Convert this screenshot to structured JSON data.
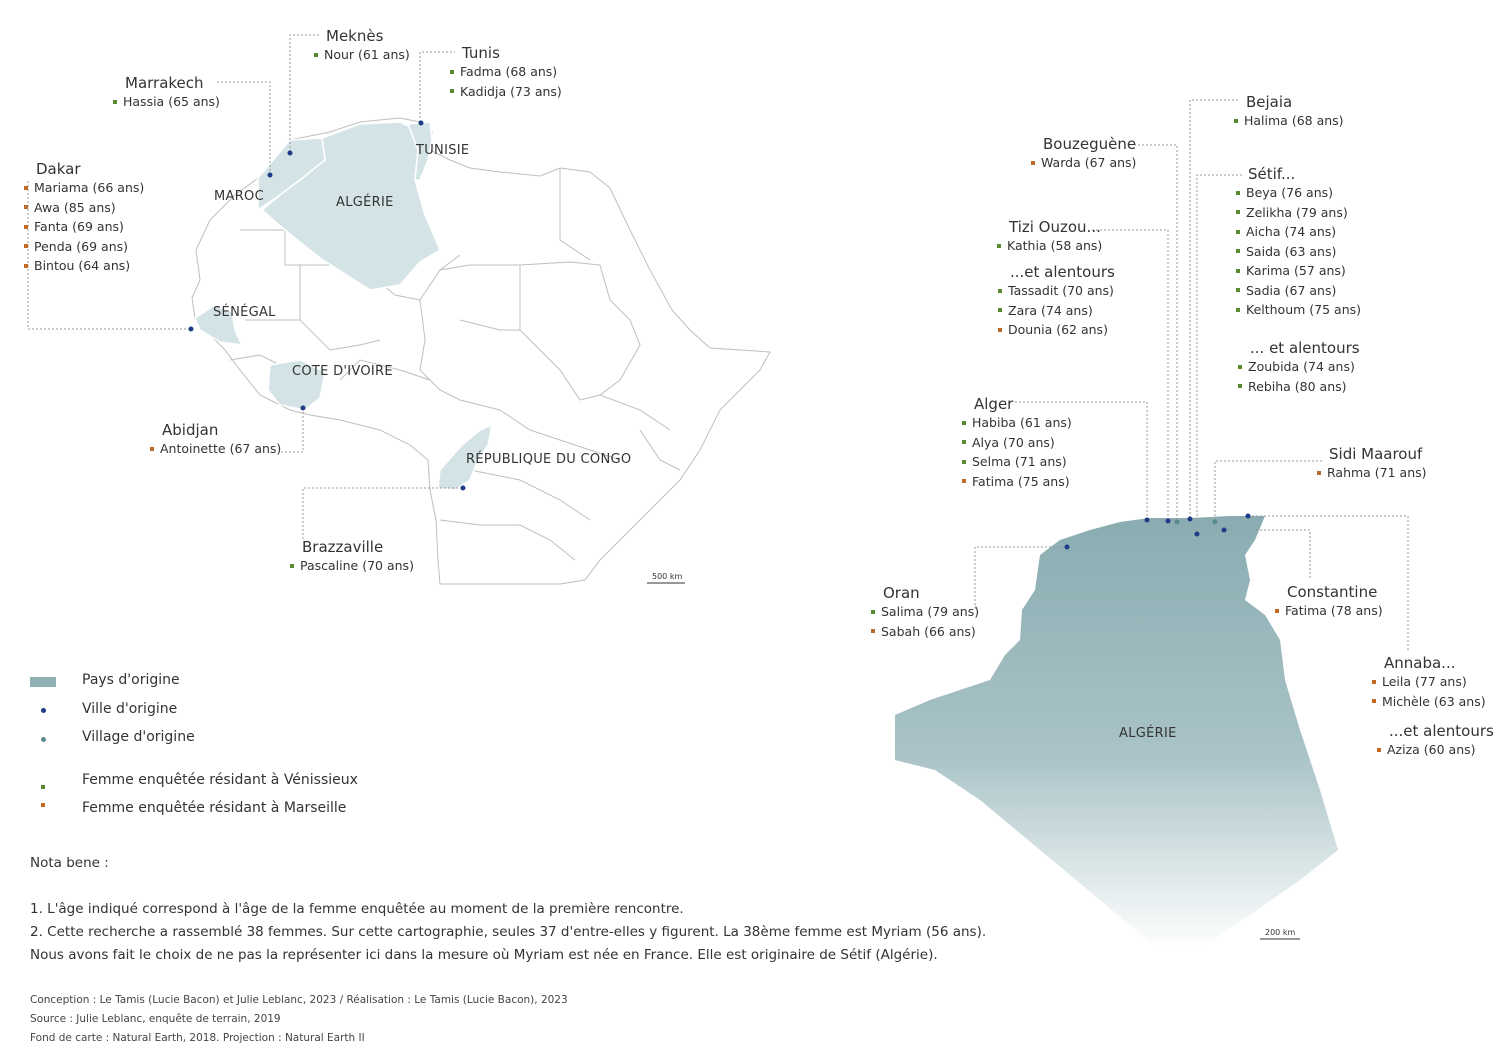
{
  "colors": {
    "vienissieux": "#5a8a2e",
    "marseille": "#c06a2a",
    "origin_fill": "#d3e3e6",
    "algeria_fill": "#8fb0b5",
    "city_dot": "#1f3c88",
    "village_dot": "#5b8a8e"
  },
  "countries": {
    "maroc": "MAROC",
    "algerie": "ALGÉRIE",
    "tunisie": "TUNISIE",
    "senegal": "SÉNÉGAL",
    "cote": "COTE D'IVOIRE",
    "congo": "RÉPUBLIQUE DU CONGO",
    "algerie_detail": "ALGÉRIE"
  },
  "cities": {
    "meknes": {
      "city": "Meknès",
      "women": [
        {
          "name": "Nour (61 ans)",
          "res": "v"
        }
      ]
    },
    "tunis": {
      "city": "Tunis",
      "women": [
        {
          "name": "Fadma (68 ans)",
          "res": "v"
        },
        {
          "name": "Kadidja (73 ans)",
          "res": "v"
        }
      ]
    },
    "marrakech": {
      "city": "Marrakech",
      "women": [
        {
          "name": "Hassia (65 ans)",
          "res": "v"
        }
      ]
    },
    "dakar": {
      "city": "Dakar",
      "women": [
        {
          "name": "Mariama (66 ans)",
          "res": "m"
        },
        {
          "name": "Awa (85 ans)",
          "res": "m"
        },
        {
          "name": "Fanta (69 ans)",
          "res": "m"
        },
        {
          "name": "Penda (69 ans)",
          "res": "m"
        },
        {
          "name": "Bintou (64 ans)",
          "res": "m"
        }
      ]
    },
    "abidjan": {
      "city": "Abidjan",
      "women": [
        {
          "name": "Antoinette (67 ans)",
          "res": "m"
        }
      ]
    },
    "brazzaville": {
      "city": "Brazzaville",
      "women": [
        {
          "name": "Pascaline (70 ans)",
          "res": "v"
        }
      ]
    },
    "bejaia": {
      "city": "Bejaia",
      "women": [
        {
          "name": "Halima (68 ans)",
          "res": "v"
        }
      ]
    },
    "bouzeguene": {
      "city": "Bouzeguène",
      "women": [
        {
          "name": "Warda (67 ans)",
          "res": "m"
        }
      ]
    },
    "setif": {
      "city": "Sétif...",
      "women": [
        {
          "name": "Beya (76 ans)",
          "res": "v"
        },
        {
          "name": "Zelikha (79 ans)",
          "res": "v"
        },
        {
          "name": "Aicha (74 ans)",
          "res": "v"
        },
        {
          "name": "Saida (63 ans)",
          "res": "v"
        },
        {
          "name": "Karima (57 ans)",
          "res": "v"
        },
        {
          "name": "Sadia (67 ans)",
          "res": "v"
        },
        {
          "name": "Kelthoum (75 ans)",
          "res": "v"
        }
      ]
    },
    "setif_alentours": {
      "city": "... et alentours",
      "women": [
        {
          "name": "Zoubida (74 ans)",
          "res": "v"
        },
        {
          "name": "Rebiha (80 ans)",
          "res": "v"
        }
      ]
    },
    "tizi": {
      "city": "Tizi Ouzou...",
      "women": [
        {
          "name": "Kathia (58 ans)",
          "res": "v"
        }
      ]
    },
    "tizi_alentours": {
      "city": "...et alentours",
      "women": [
        {
          "name": "Tassadit (70 ans)",
          "res": "v"
        },
        {
          "name": "Zara (74 ans)",
          "res": "v"
        },
        {
          "name": "Dounia (62 ans)",
          "res": "m"
        }
      ]
    },
    "alger": {
      "city": "Alger",
      "women": [
        {
          "name": "Habiba (61 ans)",
          "res": "v"
        },
        {
          "name": "Alya (70 ans)",
          "res": "v"
        },
        {
          "name": "Selma (71 ans)",
          "res": "v"
        },
        {
          "name": "Fatima (75 ans)",
          "res": "m"
        }
      ]
    },
    "sidi": {
      "city": "Sidi Maarouf",
      "women": [
        {
          "name": "Rahma (71 ans)",
          "res": "m"
        }
      ]
    },
    "oran": {
      "city": "Oran",
      "women": [
        {
          "name": "Salima (79 ans)",
          "res": "v"
        },
        {
          "name": "Sabah (66 ans)",
          "res": "m"
        }
      ]
    },
    "constantine": {
      "city": "Constantine",
      "women": [
        {
          "name": "Fatima (78 ans)",
          "res": "m"
        }
      ]
    },
    "annaba": {
      "city": "Annaba...",
      "women": [
        {
          "name": "Leila (77 ans)",
          "res": "m"
        },
        {
          "name": "Michèle (63 ans)",
          "res": "m"
        }
      ]
    },
    "annaba_alentours": {
      "city": "...et alentours",
      "women": [
        {
          "name": "Aziza (60 ans)",
          "res": "m"
        }
      ]
    }
  },
  "scales": {
    "africa": "500 km",
    "algeria": "200 km"
  },
  "legend": {
    "pays": "Pays d'origine",
    "ville": "Ville d'origine",
    "village": "Village d'origine",
    "venissieux": "Femme enquêtée résidant à Vénissieux",
    "marseille": "Femme enquêtée résidant à Marseille"
  },
  "nota": {
    "title": "Nota bene :",
    "line1": "1. L'âge indiqué correspond à l'âge de la femme enquêtée au moment de la première rencontre.",
    "line2": "2. Cette recherche a rassemblé 38 femmes. Sur cette cartographie, seules 37 d'entre-elles y figurent. La 38ème femme est Myriam (56 ans).",
    "line3": "Nous avons fait le choix de ne pas la représenter ici dans la mesure où Myriam est née en France. Elle est originaire de Sétif (Algérie)."
  },
  "credits": {
    "conception": "Conception : Le Tamis (Lucie Bacon) et Julie Leblanc, 2023 / Réalisation : Le Tamis (Lucie Bacon), 2023",
    "source": "Source : Julie Leblanc, enquête de terrain, 2019",
    "fond": "Fond de carte : Natural Earth, 2018. Projection : Natural Earth II"
  }
}
